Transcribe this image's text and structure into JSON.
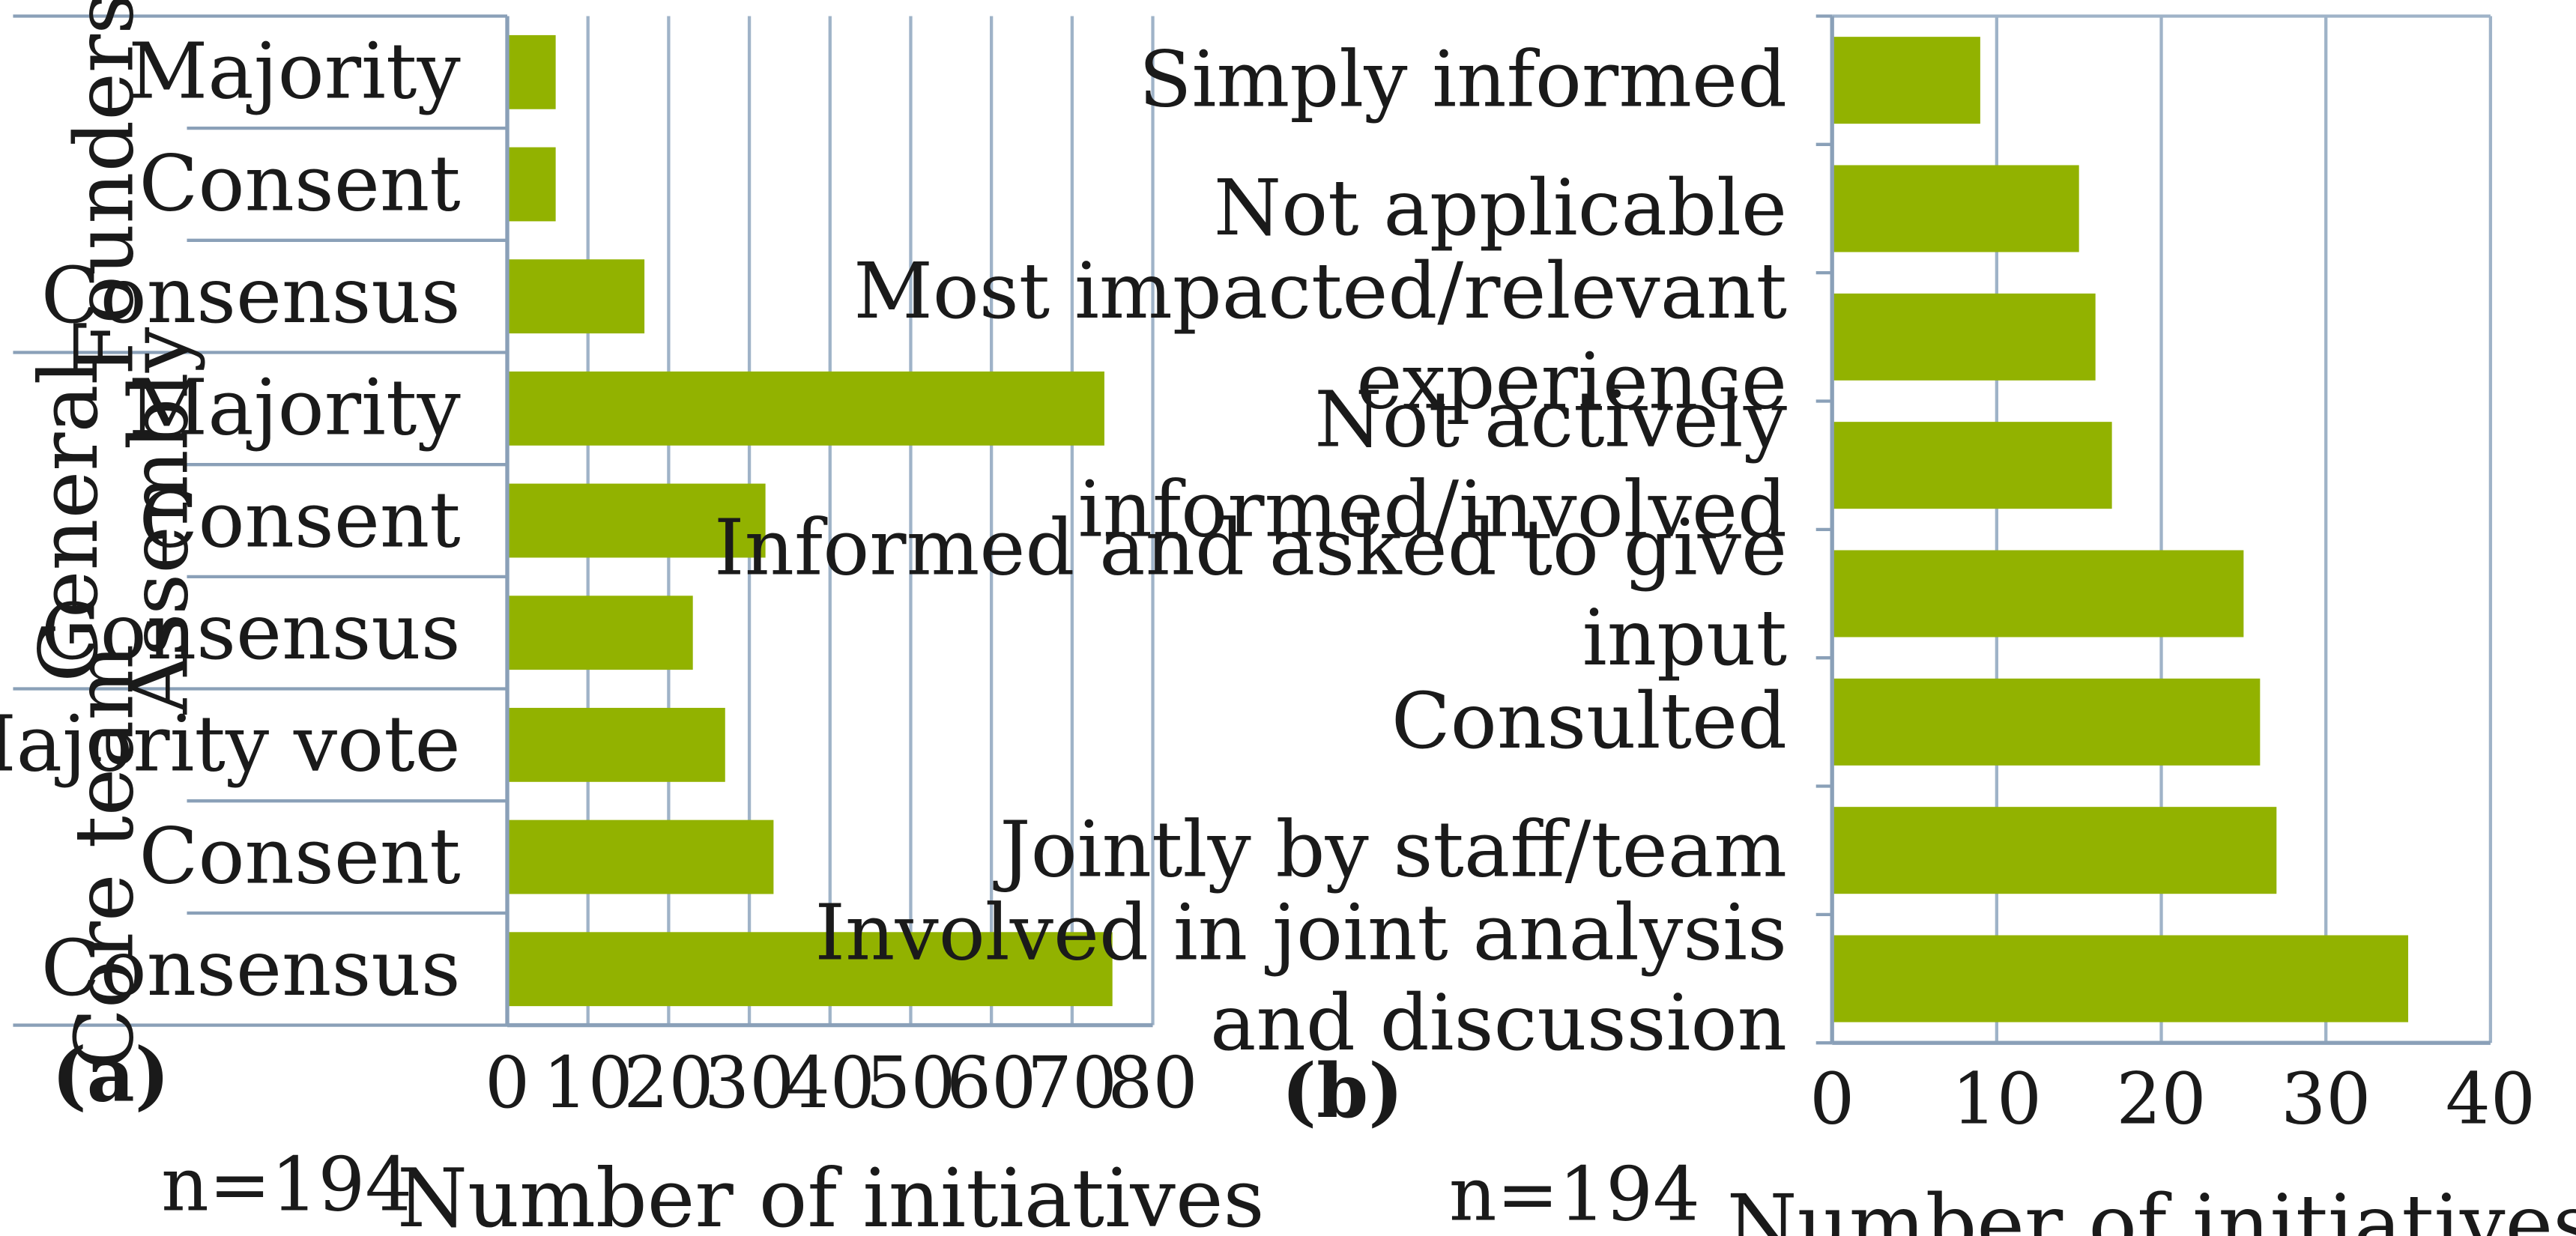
{
  "chart_data": [
    {
      "type": "bar",
      "orientation": "horizontal",
      "panel_label": "(a)",
      "note": "n=194",
      "xlabel": "Number of initiatives",
      "xlim": [
        0,
        80
      ],
      "xticks": [
        "0",
        "10",
        "20",
        "30",
        "40",
        "50",
        "60",
        "70",
        "80"
      ],
      "groups": [
        {
          "name": "Founders",
          "categories": [
            "Majority",
            "Consent",
            "Consensus"
          ],
          "values": [
            6,
            6,
            17
          ]
        },
        {
          "name": "General Assembly",
          "categories": [
            "Majority",
            "Consent",
            "Consensus"
          ],
          "values": [
            74,
            32,
            23
          ]
        },
        {
          "name": "Core team",
          "categories": [
            "Majority vote",
            "Consent",
            "Consensus"
          ],
          "values": [
            27,
            33,
            75
          ]
        }
      ],
      "bar_color": "#92b200"
    },
    {
      "type": "bar",
      "orientation": "horizontal",
      "panel_label": "(b)",
      "note": "n=194",
      "xlabel": "Number of initiatives",
      "xlim": [
        0,
        40
      ],
      "xticks": [
        "0",
        "10",
        "20",
        "30",
        "40"
      ],
      "categories": [
        [
          "Simply informed"
        ],
        [
          "Not applicable"
        ],
        [
          "Most impacted/relevant",
          "experience"
        ],
        [
          "Not actively",
          "informed/involved"
        ],
        [
          "Informed and asked to give",
          "input"
        ],
        [
          "Consulted"
        ],
        [
          "Jointly by staff/team"
        ],
        [
          "Involved in joint analysis",
          "and discussion"
        ]
      ],
      "values": [
        9,
        15,
        16,
        17,
        25,
        26,
        27,
        35
      ],
      "bar_color": "#92b200"
    }
  ]
}
